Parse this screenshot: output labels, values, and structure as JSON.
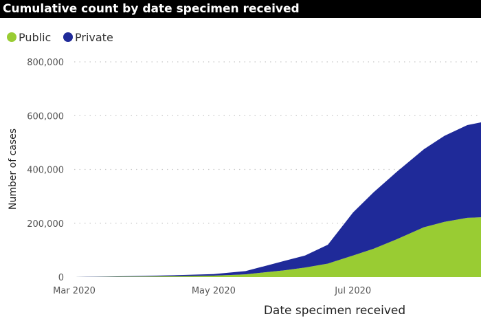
{
  "header": {
    "title": "Cumulative count by date specimen received"
  },
  "chart_data": {
    "type": "area",
    "stacked": true,
    "title": "Cumulative count by date specimen received",
    "xlabel": "Date specimen received",
    "ylabel": "Number of cases",
    "ylim": [
      0,
      800000
    ],
    "yticks": [
      0,
      200000,
      400000,
      600000,
      800000
    ],
    "ytick_labels": [
      "0",
      "200,000",
      "400,000",
      "600,000",
      "800,000"
    ],
    "xticks": [
      "2020-03-01",
      "2020-05-01",
      "2020-07-01"
    ],
    "xtick_labels": [
      "Mar 2020",
      "May 2020",
      "Jul 2020"
    ],
    "xlim": [
      "2020-03-01",
      "2020-08-26"
    ],
    "grid": "horizontal-dotted",
    "legend": "top-left",
    "x": [
      "2020-03-01",
      "2020-03-15",
      "2020-04-01",
      "2020-04-15",
      "2020-05-01",
      "2020-05-15",
      "2020-06-01",
      "2020-06-10",
      "2020-06-20",
      "2020-07-01",
      "2020-07-10",
      "2020-07-20",
      "2020-08-01",
      "2020-08-10",
      "2020-08-20",
      "2020-08-26"
    ],
    "series": [
      {
        "name": "Public",
        "color": "#99cc33",
        "values": [
          0,
          1000,
          2000,
          3000,
          5000,
          10000,
          25000,
          35000,
          50000,
          80000,
          105000,
          140000,
          185000,
          205000,
          220000,
          222000
        ]
      },
      {
        "name": "Private",
        "color": "#1f2a99",
        "values": [
          0,
          1000,
          2000,
          4000,
          6000,
          12000,
          35000,
          45000,
          70000,
          160000,
          210000,
          250000,
          290000,
          320000,
          345000,
          353000
        ]
      }
    ]
  }
}
